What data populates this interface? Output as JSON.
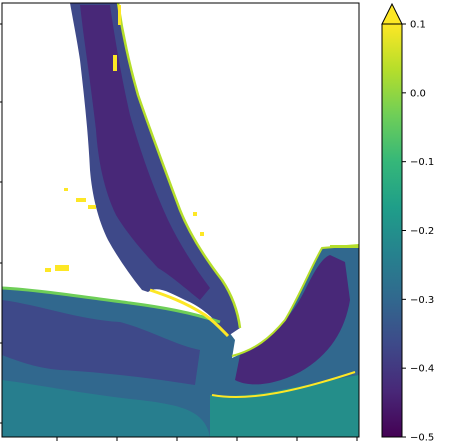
{
  "chart_data": {
    "type": "heatmap",
    "title": "",
    "xlabel": "",
    "ylabel": "",
    "colormap": "viridis",
    "colorbar": {
      "vmin": -0.5,
      "vmax": 0.1,
      "extend": "max",
      "ticks": [
        0.1,
        0.0,
        -0.1,
        -0.2,
        -0.3,
        -0.4,
        -0.5
      ],
      "tick_labels": [
        "0.1",
        "0.0",
        "−0.1",
        "−0.2",
        "−0.3",
        "−0.4",
        "−0.5"
      ]
    },
    "x_tick_labels_visible": false,
    "y_tick_labels_visible": false,
    "missing_value_color": "#ffffff"
  },
  "colors": {
    "viridis_stops": [
      "#440154",
      "#482878",
      "#3e4989",
      "#31688e",
      "#26828e",
      "#1f9e89",
      "#35b779",
      "#6ece58",
      "#b5de2b",
      "#fde725"
    ],
    "frame": "#000000",
    "background": "#ffffff"
  }
}
